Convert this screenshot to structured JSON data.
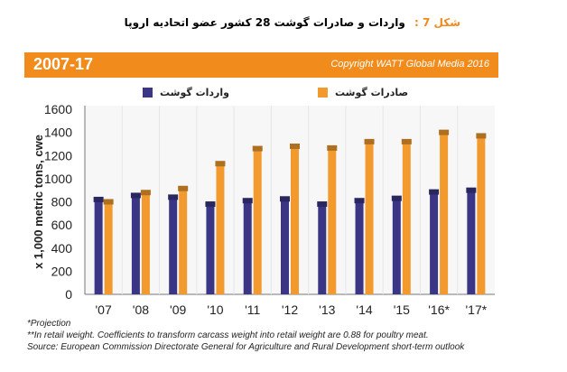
{
  "caption": {
    "label": "شکل 7 :",
    "text": "واردات و صادرات گوشت 28 کشور عضو اتحادیه اروپا"
  },
  "banner": {
    "period": "2007-17",
    "copyright": "Copyright WATT Global Media 2016"
  },
  "chart_data": {
    "type": "bar",
    "ylabel": "x 1,000 metric tons, cwe",
    "xlabel": "",
    "ylim": [
      0,
      1600
    ],
    "yticks": [
      0,
      200,
      400,
      600,
      800,
      1000,
      1200,
      1400,
      1600
    ],
    "categories": [
      "'07",
      "'08",
      "'09",
      "'10",
      "'11",
      "'12",
      "'13",
      "'14",
      "'15",
      "'16*",
      "'17*"
    ],
    "grid": false,
    "legend_position": "top",
    "series": [
      {
        "name": "واردات گوشت",
        "color": "#3a3585",
        "values": [
          820,
          855,
          840,
          780,
          810,
          825,
          780,
          810,
          830,
          885,
          900
        ]
      },
      {
        "name": "صادرات گوشت",
        "color": "#f29a2e",
        "values": [
          800,
          880,
          915,
          1130,
          1260,
          1280,
          1265,
          1320,
          1320,
          1400,
          1370
        ]
      }
    ]
  },
  "notes": {
    "projection": "*Projection",
    "retail": "**In retail weight. Coefficients to transform carcass weight into retail weight are 0.88 for poultry meat.",
    "source": "Source: European Commission Directorate General for Agriculture and Rural Development short-term outlook"
  }
}
